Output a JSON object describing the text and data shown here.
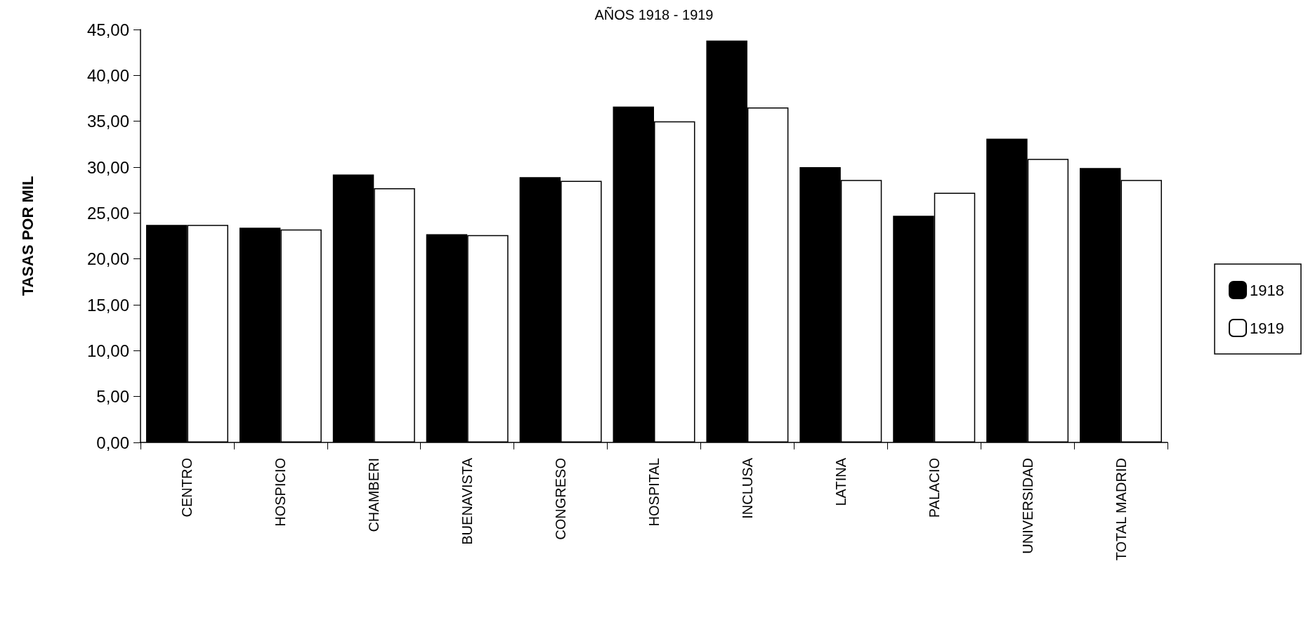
{
  "chart_data": {
    "type": "bar",
    "title": "AÑOS 1918 - 1919",
    "ylabel": "TASAS POR MIL",
    "categories": [
      "CENTRO",
      "HOSPICIO",
      "CHAMBERI",
      "BUENAVISTA",
      "CONGRESO",
      "HOSPITAL",
      "INCLUSA",
      "LATINA",
      "PALACIO",
      "UNIVERSIDAD",
      "TOTAL MADRID"
    ],
    "series": [
      {
        "name": "1918",
        "color": "#000000",
        "values": [
          23.7,
          23.4,
          29.2,
          22.7,
          28.9,
          36.6,
          43.8,
          30.0,
          24.7,
          33.1,
          29.9
        ]
      },
      {
        "name": "1919",
        "color": "#ffffff",
        "values": [
          23.7,
          23.2,
          27.7,
          22.6,
          28.5,
          35.0,
          36.5,
          28.6,
          27.2,
          30.9,
          28.6
        ]
      }
    ],
    "ylim": [
      0,
      45
    ],
    "yticks": [
      {
        "value": 0,
        "label": "0,00"
      },
      {
        "value": 5,
        "label": "5,00"
      },
      {
        "value": 10,
        "label": "10,00"
      },
      {
        "value": 15,
        "label": "15,00"
      },
      {
        "value": 20,
        "label": "20,00"
      },
      {
        "value": 25,
        "label": "25,00"
      },
      {
        "value": 30,
        "label": "30,00"
      },
      {
        "value": 35,
        "label": "35,00"
      },
      {
        "value": 40,
        "label": "40,00"
      },
      {
        "value": 45,
        "label": "45,00"
      }
    ],
    "grid": false,
    "legend": "right"
  }
}
